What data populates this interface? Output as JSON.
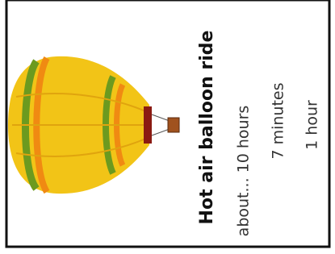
{
  "card": {
    "title": "Hot air balloon ride",
    "options": [
      "about... 10 hours",
      "7 minutes",
      "1 hour"
    ]
  }
}
